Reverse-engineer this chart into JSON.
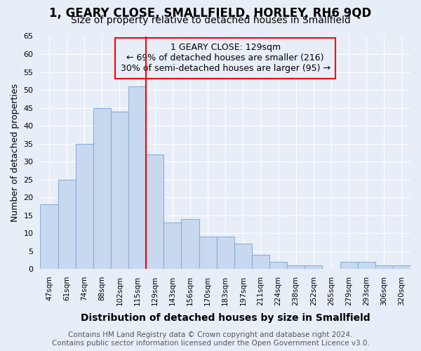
{
  "title": "1, GEARY CLOSE, SMALLFIELD, HORLEY, RH6 9QD",
  "subtitle": "Size of property relative to detached houses in Smallfield",
  "xlabel": "Distribution of detached houses by size in Smallfield",
  "ylabel": "Number of detached properties",
  "categories": [
    "47sqm",
    "61sqm",
    "74sqm",
    "88sqm",
    "102sqm",
    "115sqm",
    "129sqm",
    "143sqm",
    "156sqm",
    "170sqm",
    "183sqm",
    "197sqm",
    "211sqm",
    "224sqm",
    "238sqm",
    "252sqm",
    "265sqm",
    "279sqm",
    "293sqm",
    "306sqm",
    "320sqm"
  ],
  "values": [
    18,
    25,
    35,
    45,
    44,
    51,
    32,
    13,
    14,
    9,
    9,
    7,
    4,
    2,
    1,
    1,
    0,
    2,
    2,
    1,
    1
  ],
  "bar_color": "#c8d8ee",
  "bar_edge_color": "#8ab0d8",
  "background_color": "#e8eef8",
  "plot_bg_color": "#e8eef8",
  "grid_color": "#ffffff",
  "red_line_x": 6,
  "ylim": [
    0,
    65
  ],
  "yticks": [
    0,
    5,
    10,
    15,
    20,
    25,
    30,
    35,
    40,
    45,
    50,
    55,
    60,
    65
  ],
  "annotation_title": "1 GEARY CLOSE: 129sqm",
  "annotation_line1": "← 69% of detached houses are smaller (216)",
  "annotation_line2": "30% of semi-detached houses are larger (95) →",
  "footer1": "Contains HM Land Registry data © Crown copyright and database right 2024.",
  "footer2": "Contains public sector information licensed under the Open Government Licence v3.0.",
  "title_fontsize": 12,
  "subtitle_fontsize": 10,
  "annotation_fontsize": 9,
  "footer_fontsize": 7.5,
  "ylabel_fontsize": 9,
  "xlabel_fontsize": 10
}
